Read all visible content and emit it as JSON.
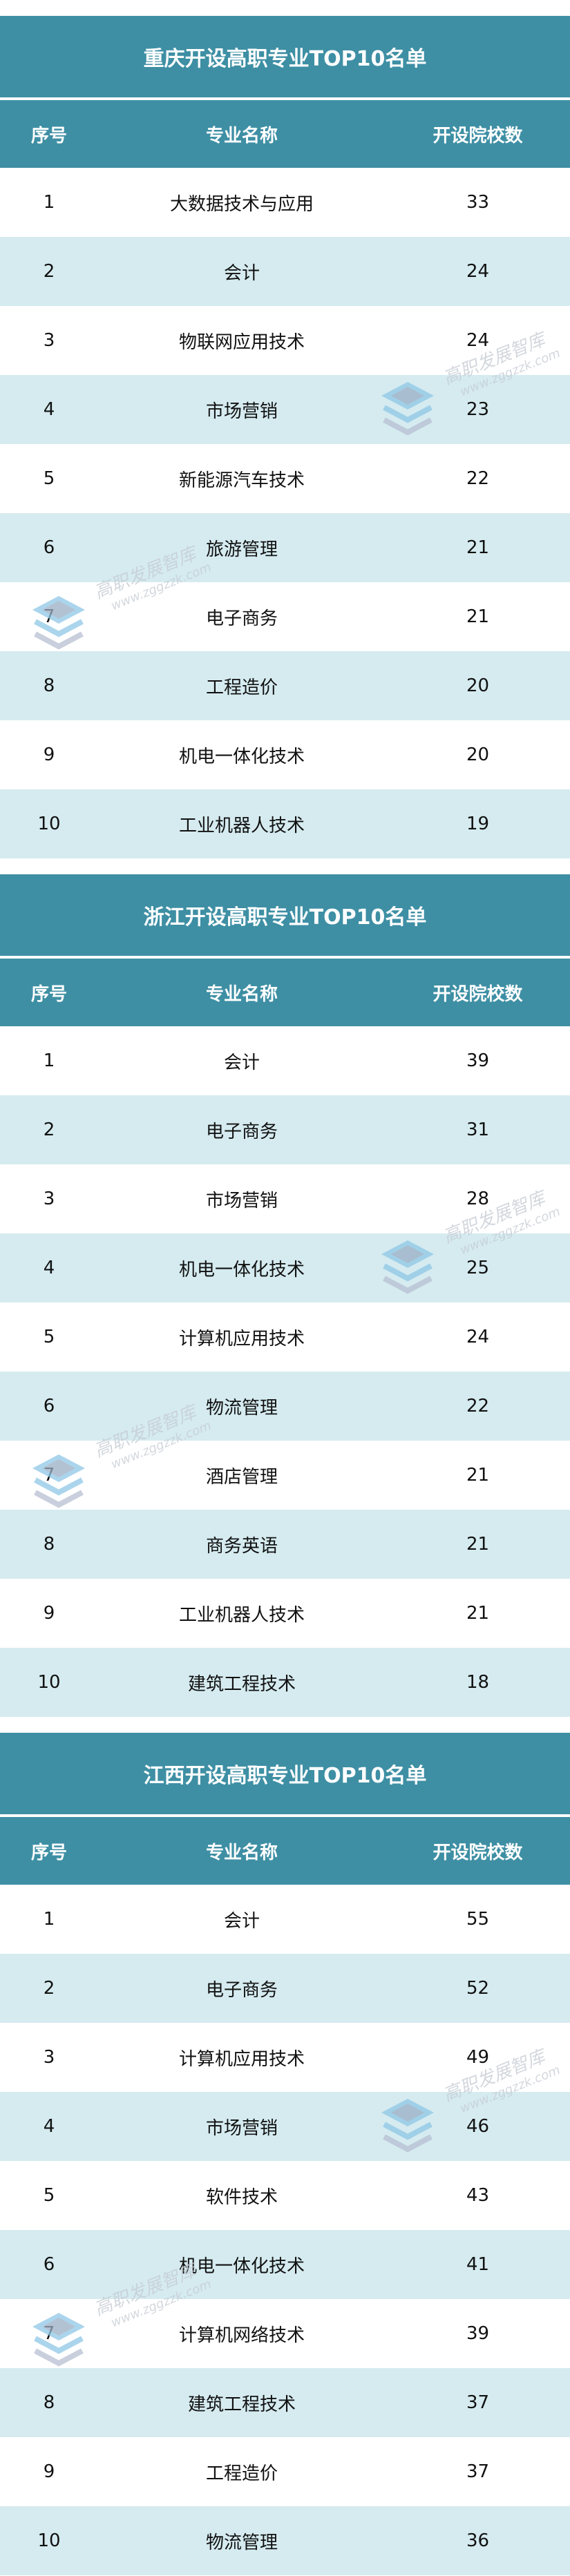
{
  "columns": [
    "序号",
    "专业名称",
    "开设院校数"
  ],
  "watermark": {
    "name": "高职发展智库",
    "url": "www.zggzzk.com"
  },
  "colors": {
    "header": "#3E8FA4",
    "stripe": "#D5EBF0"
  },
  "sections": [
    {
      "title": "重庆开设高职专业TOP10名单",
      "rows": [
        {
          "rank": "1",
          "major": "大数据技术与应用",
          "count": "33"
        },
        {
          "rank": "2",
          "major": "会计",
          "count": "24"
        },
        {
          "rank": "3",
          "major": "物联网应用技术",
          "count": "24"
        },
        {
          "rank": "4",
          "major": "市场营销",
          "count": "23"
        },
        {
          "rank": "5",
          "major": "新能源汽车技术",
          "count": "22"
        },
        {
          "rank": "6",
          "major": "旅游管理",
          "count": "21"
        },
        {
          "rank": "7",
          "major": "电子商务",
          "count": "21"
        },
        {
          "rank": "8",
          "major": "工程造价",
          "count": "20"
        },
        {
          "rank": "9",
          "major": "机电一体化技术",
          "count": "20"
        },
        {
          "rank": "10",
          "major": "工业机器人技术",
          "count": "19"
        }
      ]
    },
    {
      "title": "浙江开设高职专业TOP10名单",
      "rows": [
        {
          "rank": "1",
          "major": "会计",
          "count": "39"
        },
        {
          "rank": "2",
          "major": "电子商务",
          "count": "31"
        },
        {
          "rank": "3",
          "major": "市场营销",
          "count": "28"
        },
        {
          "rank": "4",
          "major": "机电一体化技术",
          "count": "25"
        },
        {
          "rank": "5",
          "major": "计算机应用技术",
          "count": "24"
        },
        {
          "rank": "6",
          "major": "物流管理",
          "count": "22"
        },
        {
          "rank": "7",
          "major": "酒店管理",
          "count": "21"
        },
        {
          "rank": "8",
          "major": "商务英语",
          "count": "21"
        },
        {
          "rank": "9",
          "major": "工业机器人技术",
          "count": "21"
        },
        {
          "rank": "10",
          "major": "建筑工程技术",
          "count": "18"
        }
      ]
    },
    {
      "title": "江西开设高职专业TOP10名单",
      "rows": [
        {
          "rank": "1",
          "major": "会计",
          "count": "55"
        },
        {
          "rank": "2",
          "major": "电子商务",
          "count": "52"
        },
        {
          "rank": "3",
          "major": "计算机应用技术",
          "count": "49"
        },
        {
          "rank": "4",
          "major": "市场营销",
          "count": "46"
        },
        {
          "rank": "5",
          "major": "软件技术",
          "count": "43"
        },
        {
          "rank": "6",
          "major": "机电一体化技术",
          "count": "41"
        },
        {
          "rank": "7",
          "major": "计算机网络技术",
          "count": "39"
        },
        {
          "rank": "8",
          "major": "建筑工程技术",
          "count": "37"
        },
        {
          "rank": "9",
          "major": "工程造价",
          "count": "37"
        },
        {
          "rank": "10",
          "major": "物流管理",
          "count": "36"
        }
      ]
    }
  ]
}
